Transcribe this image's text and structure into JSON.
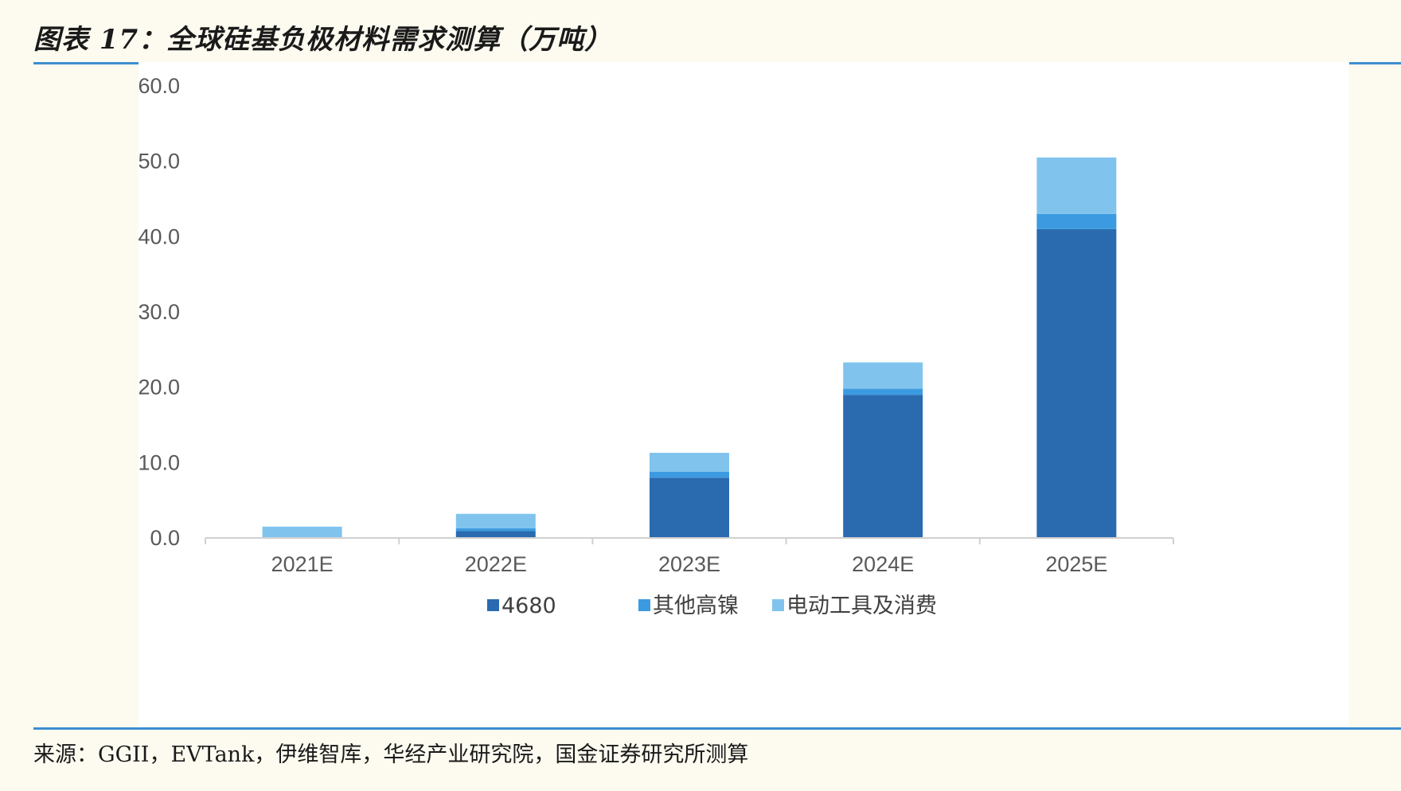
{
  "header": {
    "title": "图表 17：全球硅基负极材料需求测算（万吨）"
  },
  "footer": {
    "source": "来源：GGII，EVTank，伊维智库，华经产业研究院，国金证券研究所测算"
  },
  "colors": {
    "rule": "#3e8ed0",
    "series_4680": "#2a6bb0",
    "series_other_high_nickel": "#3c9be0",
    "series_power_tools_consumer": "#80c4ee"
  },
  "chart_data": {
    "type": "bar",
    "stacked": true,
    "categories": [
      "2021E",
      "2022E",
      "2023E",
      "2024E",
      "2025E"
    ],
    "series": [
      {
        "name": "4680",
        "values": [
          0.0,
          0.9,
          8.0,
          19.0,
          41.0
        ]
      },
      {
        "name": "其他高镍",
        "values": [
          0.0,
          0.4,
          0.8,
          0.8,
          2.0
        ]
      },
      {
        "name": "电动工具及消费",
        "values": [
          1.5,
          1.9,
          2.5,
          3.5,
          7.5
        ]
      }
    ],
    "ylim": [
      0,
      60
    ],
    "yticks": [
      "0.0",
      "10.0",
      "20.0",
      "30.0",
      "40.0",
      "50.0",
      "60.0"
    ],
    "grid": false,
    "legend_position": "bottom"
  }
}
